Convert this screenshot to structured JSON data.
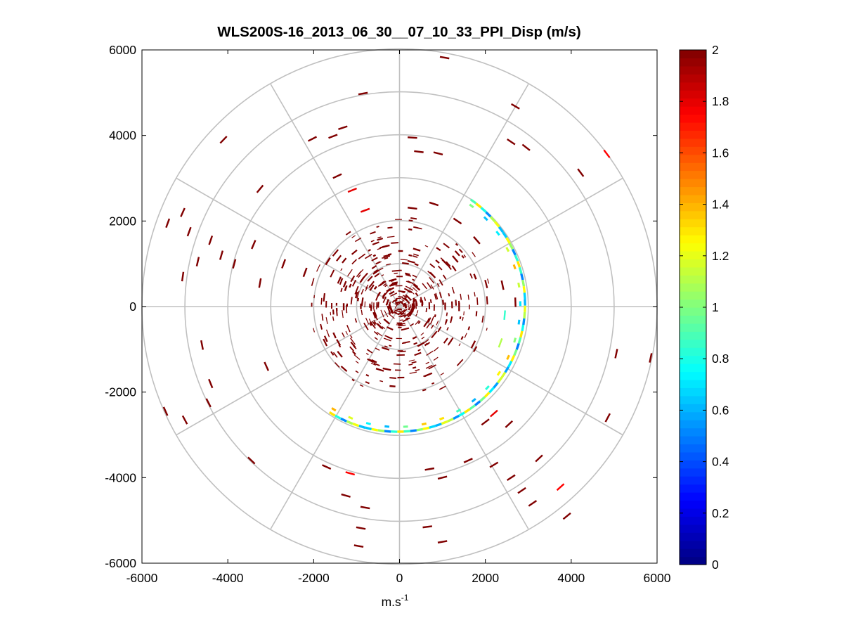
{
  "chart_data": {
    "type": "heatmap",
    "subtype": "polar-ppi",
    "title": "WLS200S-16_2013_06_30__07_10_33_PPI_Disp (m/s)",
    "xlabel": "m.s",
    "xlabel_superscript": "-1",
    "ylabel": "",
    "xlim": [
      -6000,
      6000
    ],
    "ylim": [
      -6000,
      6000
    ],
    "x_ticks": [
      -6000,
      -4000,
      -2000,
      0,
      2000,
      4000,
      6000
    ],
    "x_tick_labels": [
      "-6000",
      "-4000",
      "-2000",
      "0",
      "2000",
      "4000",
      "6000"
    ],
    "y_ticks": [
      6000,
      4000,
      2000,
      0,
      -2000,
      -4000,
      -6000
    ],
    "y_tick_labels": [
      "6000",
      "4000",
      "2000",
      "0",
      "-2000",
      "-4000",
      "-6000"
    ],
    "range_rings_m": [
      1000,
      2000,
      3000,
      4000,
      5000,
      6000
    ],
    "azimuth_spokes_deg": [
      0,
      30,
      60,
      90,
      120,
      150,
      180,
      210,
      240,
      270,
      300,
      330
    ],
    "grid": "polar",
    "colorbar": {
      "colormap": "jet",
      "min": 0,
      "max": 2,
      "ticks": [
        0,
        0.2,
        0.4,
        0.6,
        0.8,
        1,
        1.2,
        1.4,
        1.6,
        1.8,
        2
      ],
      "tick_labels": [
        "0",
        "0.2",
        "0.4",
        "0.6",
        "0.8",
        "1",
        "1.2",
        "1.4",
        "1.6",
        "1.8",
        "2"
      ],
      "placement": "right"
    },
    "arc_band": {
      "description": "low-dispersion ring segment",
      "range_m_start": 3000,
      "range_m_end": 2870,
      "azimuth_deg_start": 35,
      "azimuth_deg_end": 212,
      "value_range": [
        0.5,
        1.3
      ]
    },
    "cells": [
      {
        "x": 1050,
        "y": 5820,
        "az_deg": 10,
        "value": 2.0
      },
      {
        "x": -850,
        "y": 4980,
        "az_deg": 350,
        "value": 2.0
      },
      {
        "x": -1320,
        "y": 4180,
        "az_deg": 342,
        "value": 2.0
      },
      {
        "x": -1550,
        "y": 3980,
        "az_deg": 339,
        "value": 2.0
      },
      {
        "x": -2030,
        "y": 3920,
        "az_deg": 333,
        "value": 2.0
      },
      {
        "x": -4100,
        "y": 3900,
        "az_deg": 314,
        "value": 2.0
      },
      {
        "x": 2700,
        "y": 4680,
        "az_deg": 30,
        "value": 2.0
      },
      {
        "x": 2600,
        "y": 3850,
        "az_deg": 34,
        "value": 2.0
      },
      {
        "x": 2950,
        "y": 3720,
        "az_deg": 38,
        "value": 2.0
      },
      {
        "x": 4220,
        "y": 3130,
        "az_deg": 53,
        "value": 2.0
      },
      {
        "x": 4830,
        "y": 3570,
        "az_deg": 53,
        "value": 1.75
      },
      {
        "x": 300,
        "y": 3950,
        "az_deg": 4,
        "value": 2.0
      },
      {
        "x": 450,
        "y": 3620,
        "az_deg": 7,
        "value": 2.0
      },
      {
        "x": 900,
        "y": 3580,
        "az_deg": 14,
        "value": 2.0
      },
      {
        "x": -1450,
        "y": 3050,
        "az_deg": 335,
        "value": 2.0
      },
      {
        "x": -3250,
        "y": 2750,
        "az_deg": 310,
        "value": 2.0
      },
      {
        "x": -1100,
        "y": 2720,
        "az_deg": 338,
        "value": 1.8
      },
      {
        "x": -5400,
        "y": 1950,
        "az_deg": 290,
        "value": 2.0
      },
      {
        "x": -5050,
        "y": 2200,
        "az_deg": 294,
        "value": 2.0
      },
      {
        "x": -4900,
        "y": 1750,
        "az_deg": 290,
        "value": 2.0
      },
      {
        "x": -4400,
        "y": 1550,
        "az_deg": 289,
        "value": 2.0
      },
      {
        "x": -4150,
        "y": 1200,
        "az_deg": 286,
        "value": 2.0
      },
      {
        "x": -3850,
        "y": 1000,
        "az_deg": 285,
        "value": 2.0
      },
      {
        "x": -4700,
        "y": 1050,
        "az_deg": 283,
        "value": 2.0
      },
      {
        "x": -5050,
        "y": 700,
        "az_deg": 278,
        "value": 2.0
      },
      {
        "x": -3400,
        "y": 1450,
        "az_deg": 293,
        "value": 2.0
      },
      {
        "x": -3250,
        "y": 550,
        "az_deg": 280,
        "value": 2.0
      },
      {
        "x": -2700,
        "y": 1000,
        "az_deg": 290,
        "value": 2.0
      },
      {
        "x": -2200,
        "y": 800,
        "az_deg": 290,
        "value": 2.0
      },
      {
        "x": -800,
        "y": 2250,
        "az_deg": 340,
        "value": 1.8
      },
      {
        "x": 300,
        "y": 2300,
        "az_deg": 7,
        "value": 2.0
      },
      {
        "x": 800,
        "y": 2400,
        "az_deg": 18,
        "value": 2.0
      },
      {
        "x": 1350,
        "y": 2000,
        "az_deg": 34,
        "value": 2.0
      },
      {
        "x": 1800,
        "y": 1550,
        "az_deg": 49,
        "value": 2.0
      },
      {
        "x": 2400,
        "y": 500,
        "az_deg": 78,
        "value": 2.0
      },
      {
        "x": 2700,
        "y": 100,
        "az_deg": 88,
        "value": 2.0
      },
      {
        "x": -3100,
        "y": -1400,
        "az_deg": 246,
        "value": 2.0
      },
      {
        "x": -4600,
        "y": -900,
        "az_deg": 259,
        "value": 2.0
      },
      {
        "x": -4400,
        "y": -1800,
        "az_deg": 248,
        "value": 2.0
      },
      {
        "x": -4450,
        "y": -2250,
        "az_deg": 243,
        "value": 2.0
      },
      {
        "x": -5450,
        "y": -2450,
        "az_deg": 246,
        "value": 2.0
      },
      {
        "x": -5000,
        "y": -2650,
        "az_deg": 242,
        "value": 2.0
      },
      {
        "x": -3450,
        "y": -3600,
        "az_deg": 224,
        "value": 2.0
      },
      {
        "x": -1700,
        "y": -3750,
        "az_deg": 204,
        "value": 2.0
      },
      {
        "x": -1150,
        "y": -3900,
        "az_deg": 196,
        "value": 1.75
      },
      {
        "x": -1250,
        "y": -4420,
        "az_deg": 196,
        "value": 2.0
      },
      {
        "x": -800,
        "y": -4700,
        "az_deg": 190,
        "value": 2.0
      },
      {
        "x": -900,
        "y": -5180,
        "az_deg": 190,
        "value": 2.0
      },
      {
        "x": -950,
        "y": -5600,
        "az_deg": 190,
        "value": 2.0
      },
      {
        "x": 650,
        "y": -5150,
        "az_deg": 173,
        "value": 2.0
      },
      {
        "x": 1000,
        "y": -5500,
        "az_deg": 170,
        "value": 2.0
      },
      {
        "x": 700,
        "y": -3800,
        "az_deg": 170,
        "value": 2.0
      },
      {
        "x": 1000,
        "y": -4000,
        "az_deg": 166,
        "value": 2.0
      },
      {
        "x": 1600,
        "y": -3600,
        "az_deg": 156,
        "value": 2.0
      },
      {
        "x": 2200,
        "y": -2500,
        "az_deg": 139,
        "value": 1.8
      },
      {
        "x": 2000,
        "y": -2700,
        "az_deg": 143,
        "value": 2.0
      },
      {
        "x": 2550,
        "y": -2750,
        "az_deg": 137,
        "value": 2.0
      },
      {
        "x": 2200,
        "y": -3700,
        "az_deg": 149,
        "value": 2.0
      },
      {
        "x": 2600,
        "y": -4000,
        "az_deg": 147,
        "value": 2.0
      },
      {
        "x": 2850,
        "y": -4300,
        "az_deg": 146,
        "value": 2.0
      },
      {
        "x": 3100,
        "y": -4600,
        "az_deg": 146,
        "value": 2.0
      },
      {
        "x": 3250,
        "y": -3550,
        "az_deg": 137,
        "value": 2.0
      },
      {
        "x": 3750,
        "y": -4220,
        "az_deg": 138,
        "value": 1.75
      },
      {
        "x": 3900,
        "y": -4900,
        "az_deg": 141,
        "value": 2.0
      },
      {
        "x": 4850,
        "y": -2600,
        "az_deg": 118,
        "value": 2.0
      },
      {
        "x": 5050,
        "y": -1100,
        "az_deg": 102,
        "value": 2.0
      },
      {
        "x": 5850,
        "y": -1200,
        "az_deg": 102,
        "value": 2.0
      },
      {
        "x": 2350,
        "y": -850,
        "az_deg": 110,
        "value": 1.1
      },
      {
        "x": 2450,
        "y": -200,
        "az_deg": 95,
        "value": 0.85
      }
    ]
  }
}
